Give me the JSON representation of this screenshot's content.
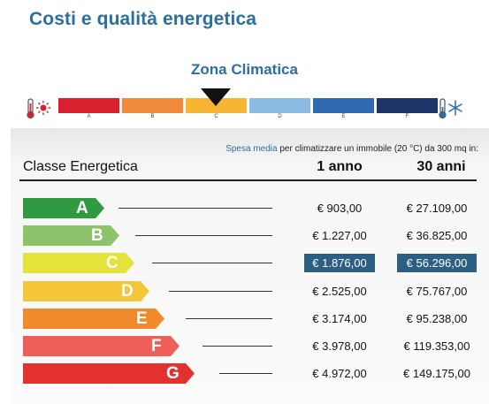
{
  "header": {
    "title": "Costi e qualità energetica"
  },
  "zone": {
    "title": "Zona Climatica",
    "selected": "C",
    "bars": [
      {
        "letter": "A",
        "color": "#d8202e"
      },
      {
        "letter": "B",
        "color": "#f08a3a"
      },
      {
        "letter": "C",
        "color": "#f7b534"
      },
      {
        "letter": "D",
        "color": "#8bbbe2"
      },
      {
        "letter": "E",
        "color": "#2f6ab0"
      },
      {
        "letter": "F",
        "color": "#1c3468"
      }
    ],
    "hot_icon": "thermometer-sun-icon",
    "cold_icon": "thermometer-snowflake-icon"
  },
  "table": {
    "spesa_highlight": "Spesa media",
    "spesa_rest": " per climatizzare un immobile (20 °C) da 300 mq in:",
    "col_class": "Classe Energetica",
    "col_1": "1 anno",
    "col_30": "30 anni",
    "rows": [
      {
        "letter": "A",
        "color": "#2f9a41",
        "y1": "€ 903,00",
        "y30": "€ 27.109,00",
        "highlight": false
      },
      {
        "letter": "B",
        "color": "#8cc36b",
        "y1": "€ 1.227,00",
        "y30": "€ 36.825,00",
        "highlight": false
      },
      {
        "letter": "C",
        "color": "#e3e33a",
        "y1": "€ 1.876,00",
        "y30": "€ 56.296,00",
        "highlight": true
      },
      {
        "letter": "D",
        "color": "#f5c53a",
        "y1": "€ 2.525,00",
        "y30": "€ 75.767,00",
        "highlight": false
      },
      {
        "letter": "E",
        "color": "#f08a2a",
        "y1": "€ 3.174,00",
        "y30": "€ 95.238,00",
        "highlight": false
      },
      {
        "letter": "F",
        "color": "#ee5f5a",
        "y1": "€ 3.978,00",
        "y30": "€ 119.353,00",
        "highlight": false
      },
      {
        "letter": "G",
        "color": "#e2312f",
        "y1": "€ 4.972,00",
        "y30": "€ 149.175,00",
        "highlight": false
      }
    ]
  }
}
